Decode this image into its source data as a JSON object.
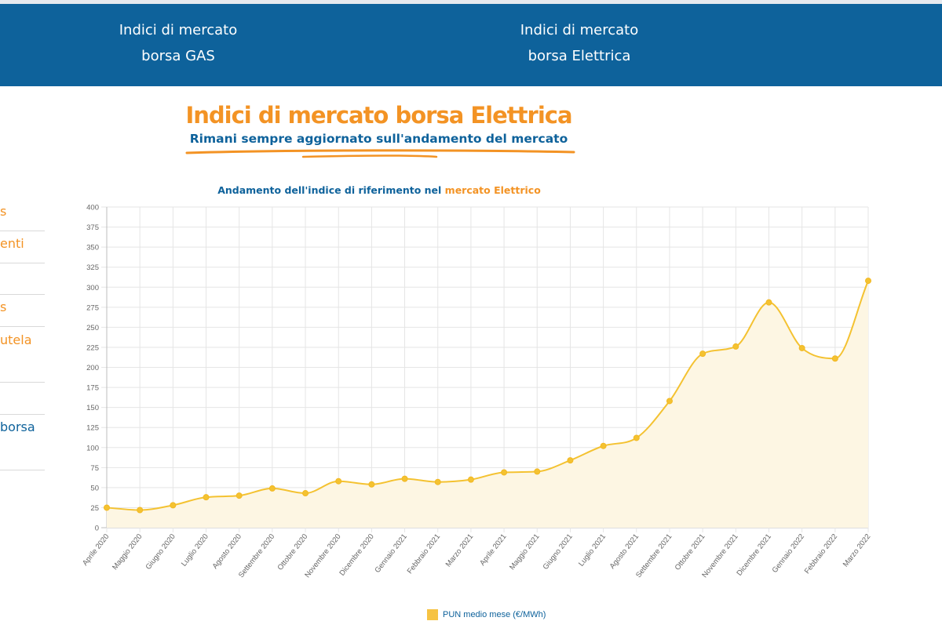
{
  "nav": {
    "gas": {
      "line1": "Indici di mercato",
      "line2": "borsa GAS"
    },
    "elettrica": {
      "line1": "Indici di mercato",
      "line2": "borsa Elettrica"
    }
  },
  "header": {
    "title": "Indici di mercato borsa Elettrica",
    "subtitle": "Rimani sempre aggiornato sull'andamento del mercato"
  },
  "sidebar": {
    "items": [
      {
        "label": "s"
      },
      {
        "label": "enti"
      },
      {
        "label": "s"
      },
      {
        "label": "utela"
      },
      {
        "label": "borsa"
      }
    ]
  },
  "colors": {
    "nav_bg": "#0e629b",
    "accent_orange": "#f39324",
    "brand_blue": "#0e629b",
    "series_line": "#f4c231",
    "series_fill": "#fdf6e3"
  },
  "chart_caption": {
    "prefix": "Andamento dell'indice di riferimento nel ",
    "highlight": "mercato Elettrico"
  },
  "chart_data": {
    "type": "area",
    "title": "Andamento dell'indice di riferimento nel mercato Elettrico",
    "xlabel": "",
    "ylabel": "",
    "ylim": [
      0,
      400
    ],
    "yticks": [
      0,
      25,
      50,
      75,
      100,
      125,
      150,
      175,
      200,
      225,
      250,
      275,
      300,
      325,
      350,
      375,
      400
    ],
    "grid": true,
    "legend_position": "bottom",
    "categories": [
      "Aprile 2020",
      "Maggio 2020",
      "Giugno 2020",
      "Luglio 2020",
      "Agosto 2020",
      "Settembre 2020",
      "Ottobre 2020",
      "Novembre 2020",
      "Dicembre 2020",
      "Gennaio 2021",
      "Febbraio 2021",
      "Marzo 2021",
      "Aprile 2021",
      "Maggio 2021",
      "Giugno 2021",
      "Luglio 2021",
      "Agosto 2021",
      "Settembre 2021",
      "Ottobre 2021",
      "Novembre 2021",
      "Dicembre 2021",
      "Gennaio 2022",
      "Febbraio 2022",
      "Marzo 2022"
    ],
    "series": [
      {
        "name": "PUN medio mese (€/MWh)",
        "values": [
          25,
          22,
          28,
          38,
          40,
          49,
          43,
          58,
          54,
          61,
          57,
          60,
          69,
          70,
          84,
          102,
          112,
          158,
          217,
          226,
          281,
          224,
          211,
          308
        ]
      }
    ]
  }
}
